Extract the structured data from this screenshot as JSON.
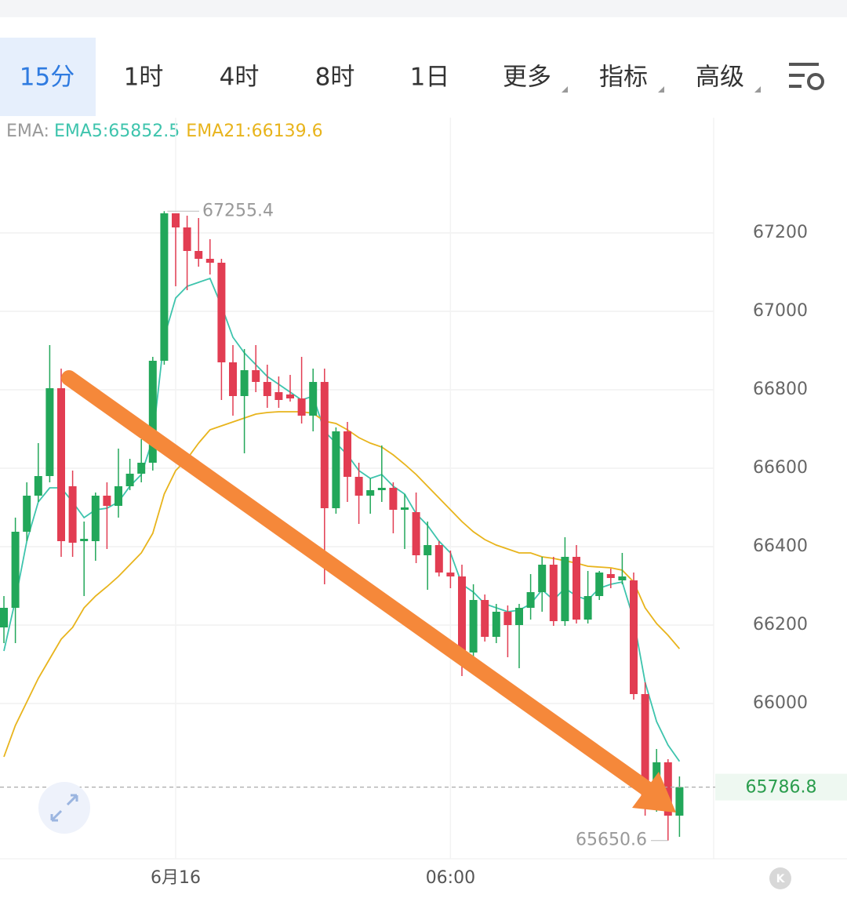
{
  "tabs": [
    "15分",
    "1时",
    "4时",
    "8时",
    "1日",
    "更多",
    "指标",
    "高级"
  ],
  "chart_data": {
    "type": "candlestick",
    "legend_title": "EMA:",
    "categories": [
      null,
      null,
      null,
      null,
      null,
      null,
      null,
      null,
      null,
      null,
      null,
      null,
      null,
      null,
      null,
      "6月16",
      null,
      null,
      null,
      null,
      null,
      null,
      null,
      null,
      null,
      null,
      null,
      null,
      null,
      null,
      null,
      null,
      null,
      null,
      null,
      null,
      null,
      null,
      null,
      "06:00",
      null,
      null,
      null,
      null,
      null,
      null,
      null,
      null,
      null,
      null,
      null,
      null,
      null,
      null,
      null,
      null,
      null,
      null,
      null,
      null
    ],
    "open": [
      66194,
      66244,
      66438,
      66530,
      66580,
      66804,
      66554,
      66414,
      66414,
      66530,
      66504,
      66554,
      66586,
      66614,
      66874,
      67250,
      67214,
      67154,
      67134,
      67124,
      66870,
      66784,
      66850,
      66820,
      66794,
      66788,
      66778,
      66734,
      66820,
      66498,
      66694,
      66578,
      66530,
      66544,
      66550,
      66494,
      66488,
      66378,
      66404,
      66334,
      66324,
      66130,
      66264,
      66170,
      66234,
      66200,
      66244,
      66284,
      66354,
      66210,
      66374,
      66214,
      66274,
      66330,
      66314,
      66314,
      66024,
      65734,
      65850,
      65714
    ],
    "high": [
      66274,
      66474,
      66564,
      66664,
      66914,
      66854,
      66594,
      66464,
      66538,
      66564,
      66650,
      66624,
      66674,
      66884,
      67255.4,
      67250,
      67244,
      67238,
      67184,
      67134,
      66914,
      66904,
      66914,
      66864,
      66834,
      66838,
      66884,
      66854,
      66854,
      66704,
      66718,
      66614,
      66574,
      66658,
      66564,
      66534,
      66538,
      66464,
      66414,
      66390,
      66354,
      66304,
      66278,
      66254,
      66250,
      66254,
      66330,
      66374,
      66374,
      66424,
      66404,
      66338,
      66338,
      66344,
      66384,
      66334,
      66054,
      65884,
      65858,
      65814
    ],
    "low": [
      66154,
      66154,
      66414,
      66514,
      66564,
      66374,
      66374,
      66274,
      66364,
      66394,
      66474,
      66544,
      66564,
      66594,
      66864,
      67064,
      67054,
      67114,
      67094,
      66774,
      66734,
      66638,
      66794,
      66754,
      66754,
      66770,
      66714,
      66694,
      66304,
      66484,
      66514,
      66458,
      66484,
      66514,
      66434,
      66394,
      66358,
      66290,
      66324,
      66294,
      66070,
      66118,
      66158,
      66154,
      66118,
      66090,
      66214,
      66234,
      66198,
      66198,
      66204,
      66204,
      66264,
      66294,
      66304,
      66010,
      65714,
      65724,
      65650.6,
      65660
    ],
    "close": [
      66244,
      66438,
      66530,
      66580,
      66804,
      66414,
      66410,
      66420,
      66530,
      66504,
      66554,
      66586,
      66614,
      66874,
      67250,
      67214,
      67154,
      67134,
      67124,
      66870,
      66784,
      66850,
      66820,
      66784,
      66774,
      66778,
      66734,
      66820,
      66498,
      66694,
      66578,
      66530,
      66544,
      66550,
      66494,
      66500,
      66378,
      66404,
      66334,
      66324,
      66130,
      66264,
      66170,
      66234,
      66200,
      66244,
      66284,
      66354,
      66210,
      66374,
      66214,
      66274,
      66334,
      66320,
      66324,
      66024,
      65734,
      65850,
      65714,
      65786.8
    ],
    "up_color": "#22a75a",
    "down_color": "#e23d52",
    "series": [
      {
        "name": "EMA5",
        "legend_label": "EMA5:65852.5",
        "color": "#3ec4ad",
        "values": [
          66134,
          66264,
          66414,
          66514,
          66550,
          66550,
          66514,
          66474,
          66494,
          66498,
          66514,
          66554,
          66584,
          66674,
          66934,
          67034,
          67064,
          67074,
          67084,
          67014,
          66934,
          66894,
          66864,
          66834,
          66814,
          66794,
          66774,
          66784,
          66694,
          66664,
          66634,
          66594,
          66574,
          66584,
          66554,
          66534,
          66484,
          66454,
          66414,
          66384,
          66304,
          66284,
          66254,
          66244,
          66234,
          66238,
          66254,
          66290,
          66264,
          66294,
          66274,
          66264,
          66294,
          66304,
          66310,
          66214,
          66054,
          65954,
          65894,
          65852.5
        ]
      },
      {
        "name": "EMA21",
        "legend_label": "EMA21:66139.6",
        "color": "#e8b41c",
        "values": [
          65864,
          65944,
          66004,
          66064,
          66114,
          66164,
          66194,
          66244,
          66274,
          66298,
          66324,
          66354,
          66384,
          66434,
          66534,
          66594,
          66624,
          66664,
          66698,
          66708,
          66718,
          66728,
          66738,
          66742,
          66744,
          66744,
          66744,
          66740,
          66720,
          66714,
          66698,
          66678,
          66664,
          66654,
          66634,
          66610,
          66584,
          66554,
          66524,
          66494,
          66464,
          66438,
          66418,
          66404,
          66394,
          66384,
          66384,
          66374,
          66370,
          66364,
          66358,
          66350,
          66348,
          66346,
          66340,
          66310,
          66244,
          66204,
          66174,
          66139.6
        ]
      }
    ],
    "ylim": [
      65604,
      67494
    ],
    "yticks": [
      66000,
      66200,
      66400,
      66600,
      66800,
      67000,
      67200
    ],
    "grid": true
  }
}
